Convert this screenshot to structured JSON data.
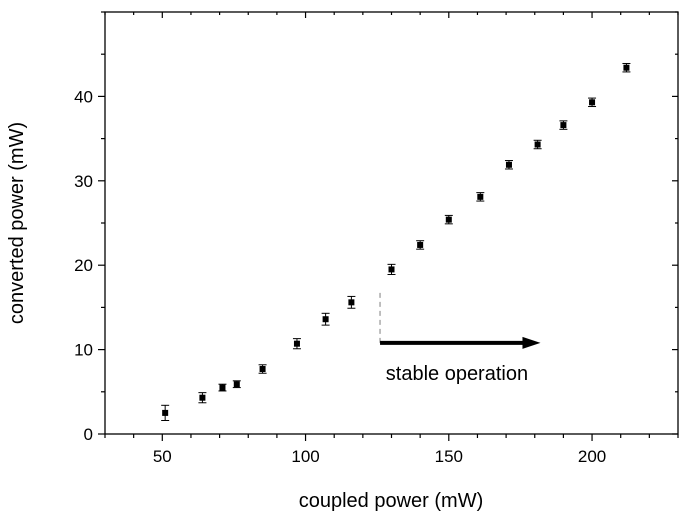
{
  "chart_data": {
    "type": "scatter",
    "title": "",
    "xlabel": "coupled power (mW)",
    "ylabel": "converted power (mW)",
    "xlim": [
      30,
      230
    ],
    "ylim": [
      0,
      50
    ],
    "xticks": [
      50,
      100,
      150,
      200
    ],
    "yticks": [
      0,
      10,
      20,
      30,
      40
    ],
    "x_minor_step": 10,
    "y_minor_step": 5,
    "grid": false,
    "legend": "none",
    "colors": {
      "marker": "#000000",
      "axes": "#000000",
      "dashed_line": "#aaaaaa",
      "arrow": "#000000"
    },
    "series": [
      {
        "points": [
          {
            "x": 51,
            "y": 2.5,
            "err": 0.9
          },
          {
            "x": 64,
            "y": 4.3,
            "err": 0.6
          },
          {
            "x": 71,
            "y": 5.5,
            "err": 0.4
          },
          {
            "x": 76,
            "y": 5.9,
            "err": 0.4
          },
          {
            "x": 85,
            "y": 7.7,
            "err": 0.5
          },
          {
            "x": 97,
            "y": 10.7,
            "err": 0.6
          },
          {
            "x": 107,
            "y": 13.6,
            "err": 0.7
          },
          {
            "x": 116,
            "y": 15.6,
            "err": 0.7
          },
          {
            "x": 130,
            "y": 19.5,
            "err": 0.6
          },
          {
            "x": 140,
            "y": 22.4,
            "err": 0.5
          },
          {
            "x": 150,
            "y": 25.4,
            "err": 0.5
          },
          {
            "x": 161,
            "y": 28.1,
            "err": 0.5
          },
          {
            "x": 171,
            "y": 31.9,
            "err": 0.5
          },
          {
            "x": 181,
            "y": 34.3,
            "err": 0.5
          },
          {
            "x": 190,
            "y": 36.6,
            "err": 0.5
          },
          {
            "x": 200,
            "y": 39.3,
            "err": 0.5
          },
          {
            "x": 212,
            "y": 43.4,
            "err": 0.5
          }
        ]
      }
    ],
    "annotations": [
      {
        "text": "stable operation",
        "threshold_x": 126,
        "dashed_y": [
          10.8,
          16.8
        ],
        "arrow": {
          "x_start": 126,
          "x_end": 182,
          "y": 10.8
        },
        "text_x": 128,
        "text_y": 6.4
      }
    ]
  }
}
